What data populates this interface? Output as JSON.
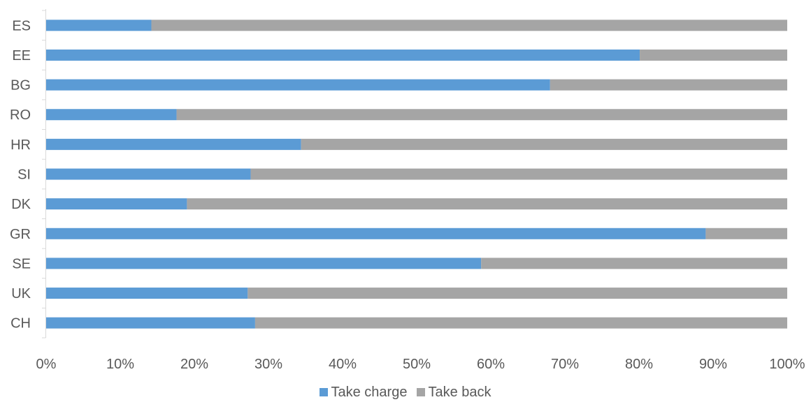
{
  "chart_data": {
    "type": "bar",
    "orientation": "horizontal",
    "stacked": true,
    "normalized": true,
    "categories": [
      "ES",
      "EE",
      "BG",
      "RO",
      "HR",
      "SI",
      "DK",
      "GR",
      "SE",
      "UK",
      "CH"
    ],
    "series": [
      {
        "name": "Take charge",
        "color": "#5B9BD5",
        "values": [
          0.142,
          0.801,
          0.68,
          0.176,
          0.344,
          0.276,
          0.19,
          0.89,
          0.587,
          0.272,
          0.282
        ]
      },
      {
        "name": "Take back",
        "color": "#A5A5A5",
        "values": [
          0.858,
          0.199,
          0.32,
          0.824,
          0.656,
          0.724,
          0.81,
          0.11,
          0.413,
          0.728,
          0.718
        ]
      }
    ],
    "x_ticks": [
      "0%",
      "10%",
      "20%",
      "30%",
      "40%",
      "50%",
      "60%",
      "70%",
      "80%",
      "90%",
      "100%"
    ],
    "xlim": [
      0,
      1
    ],
    "grid": false,
    "legend_position": "bottom",
    "title": "",
    "xlabel": "",
    "ylabel": ""
  }
}
